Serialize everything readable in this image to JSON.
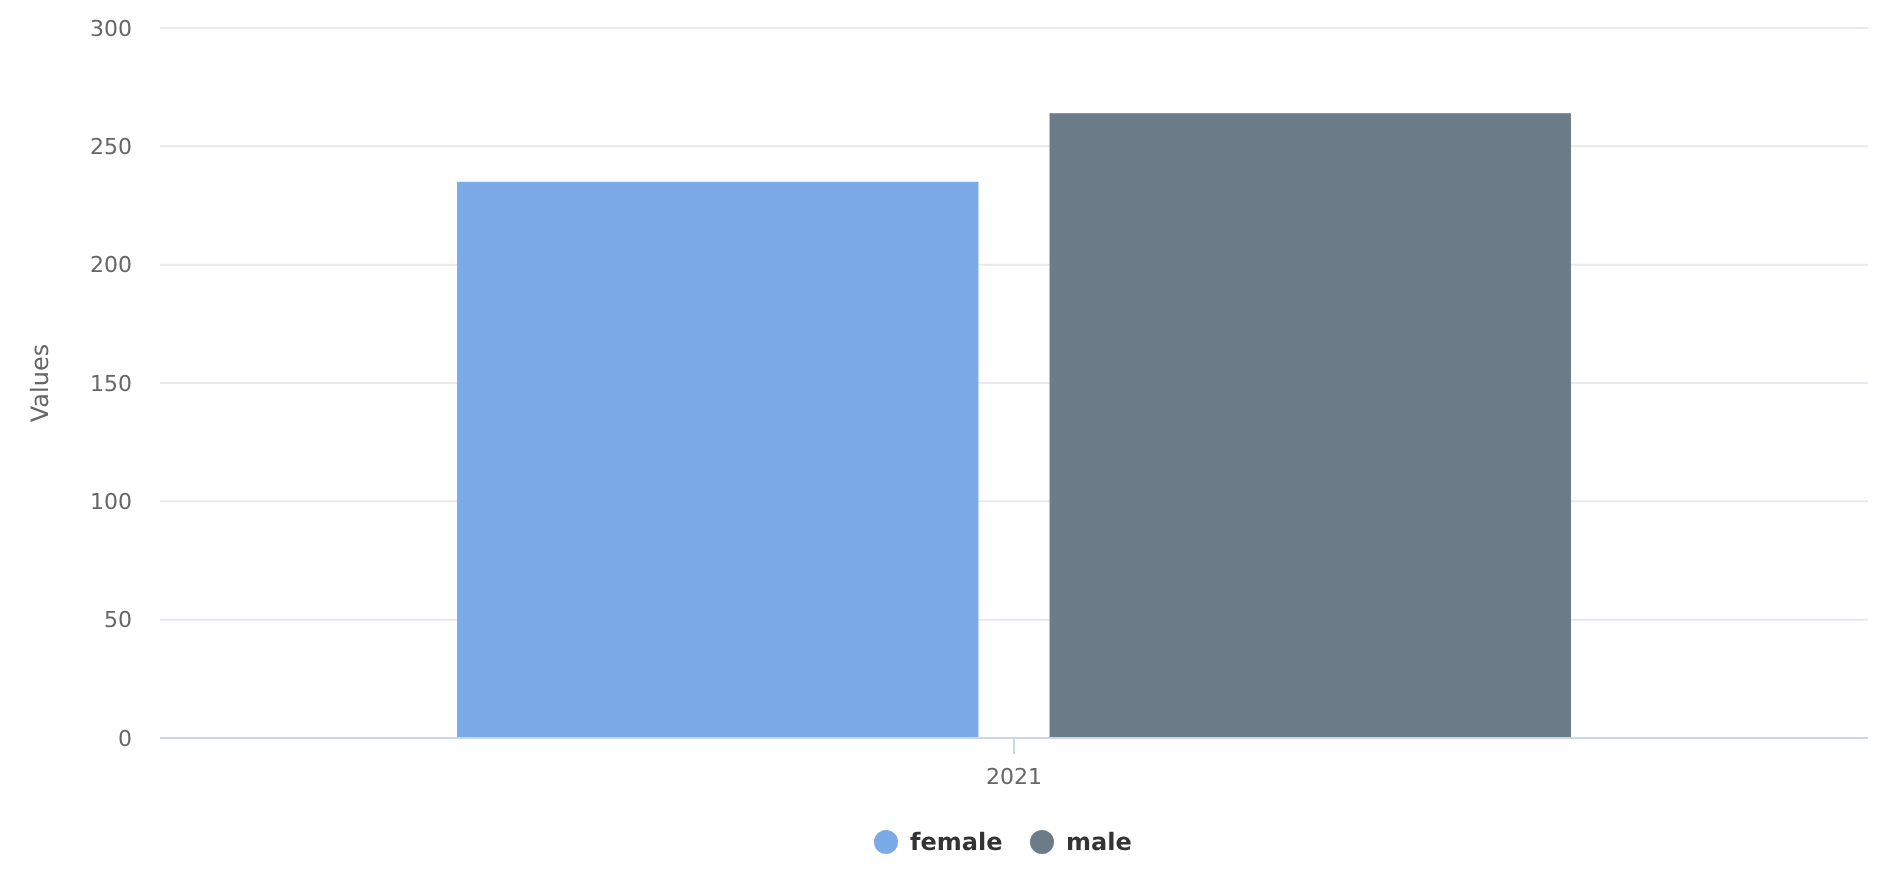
{
  "chart_data": {
    "type": "bar",
    "ylabel": "Values",
    "categories": [
      "2021"
    ],
    "series": [
      {
        "name": "female",
        "color": "#7aaae8",
        "values": [
          235
        ]
      },
      {
        "name": "male",
        "color": "#6b7b87",
        "values": [
          264
        ]
      }
    ],
    "ylim": [
      0,
      300
    ],
    "yticks": [
      0,
      50,
      100,
      150,
      200,
      250,
      300
    ],
    "grid": "y",
    "legend": "bottom"
  }
}
